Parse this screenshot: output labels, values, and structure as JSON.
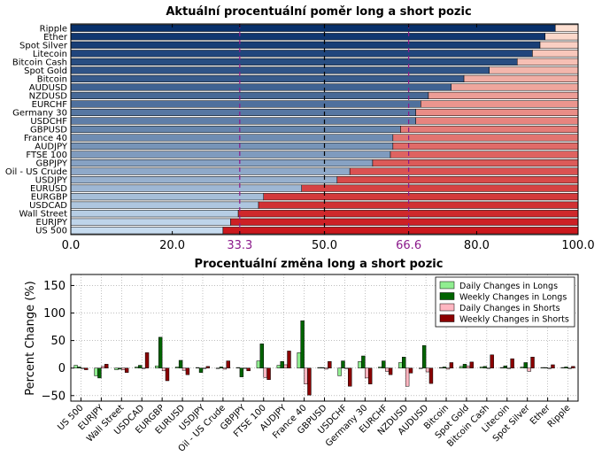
{
  "chart_data": [
    {
      "type": "bar",
      "orientation": "horizontal",
      "stacked": true,
      "title": "Aktuální procentuální poměr long a short pozic",
      "categories": [
        "Ripple",
        "Ether",
        "Spot Silver",
        "Litecoin",
        "Bitcoin Cash",
        "Spot Gold",
        "Bitcoin",
        "AUDUSD",
        "NZDUSD",
        "EURCHF",
        "Germany 30",
        "USDCHF",
        "GBPUSD",
        "France 40",
        "AUDJPY",
        "FTSE 100",
        "GBPJPY",
        "Oil - US Crude",
        "USDJPY",
        "EURUSD",
        "EURGBP",
        "USDCAD",
        "Wall Street",
        "EURJPY",
        "US 500"
      ],
      "series": [
        {
          "values": [
            95.5,
            93.5,
            92.5,
            91.0,
            88.0,
            82.5,
            77.5,
            75.0,
            70.5,
            69.0,
            68.0,
            68.0,
            65.0,
            63.5,
            63.5,
            63.0,
            59.5,
            55.0,
            52.5,
            45.5,
            38.0,
            37.0,
            33.0,
            31.5,
            30.0
          ]
        }
      ],
      "xlim": [
        0,
        100
      ],
      "xticks": [
        "0.0",
        "20.0",
        "33.3",
        "50.0",
        "66.6",
        "80.0",
        "100.0"
      ],
      "reference_lines": [
        {
          "value": 33.3,
          "label": "33.3",
          "color": "#8b1a8b"
        },
        {
          "value": 50.0,
          "label": "50.0",
          "color": "#000000"
        },
        {
          "value": 66.6,
          "label": "66.6",
          "color": "#8b1a8b"
        }
      ],
      "colors": {
        "long_dark": "#08306b",
        "long_light": "#c6dbef",
        "short_light": "#fee0d2",
        "short_dark": "#cb181d"
      }
    },
    {
      "type": "bar",
      "title": "Procentuální změna long a short pozic",
      "ylabel": "Percent Change (%)",
      "ylim": [
        -60,
        170
      ],
      "yticks": [
        "−50",
        "0",
        "50",
        "100",
        "150"
      ],
      "categories": [
        "US 500",
        "EURJPY",
        "Wall Street",
        "USDCAD",
        "EURGBP",
        "EURUSD",
        "USDJPY",
        "Oil - US Crude",
        "GBPJPY",
        "FTSE 100",
        "AUDJPY",
        "France 40",
        "GBPUSD",
        "USDCHF",
        "Germany 30",
        "EURCHF",
        "NZDUSD",
        "AUDUSD",
        "Bitcoin",
        "Spot Gold",
        "Bitcoin Cash",
        "Litecoin",
        "Spot Silver",
        "Ether",
        "Ripple"
      ],
      "series": [
        {
          "name": "Daily Changes in Longs",
          "color": "#90ee90",
          "values": [
            5,
            -14,
            -3,
            2,
            4,
            2,
            1,
            -1,
            1,
            13,
            5,
            28,
            1,
            -14,
            12,
            2,
            10,
            -1,
            1,
            3,
            2,
            1,
            2,
            1,
            1
          ]
        },
        {
          "name": "Weekly Changes in Longs",
          "color": "#006400",
          "values": [
            2,
            -18,
            -2,
            5,
            56,
            14,
            -8,
            2,
            -16,
            44,
            12,
            86,
            1,
            13,
            22,
            13,
            20,
            41,
            2,
            7,
            3,
            4,
            10,
            1,
            2
          ]
        },
        {
          "name": "Daily Changes in Shorts",
          "color": "#ffb6c1",
          "values": [
            -1,
            3,
            -3,
            -1,
            -5,
            -4,
            -1,
            -2,
            0,
            -17,
            6,
            -29,
            -2,
            -1,
            -18,
            -6,
            -33,
            -7,
            -2,
            4,
            0,
            -1,
            -6,
            -1,
            -1
          ]
        },
        {
          "name": "Weekly Changes in Shorts",
          "color": "#8b0000",
          "values": [
            -3,
            7,
            -8,
            28,
            -23,
            -12,
            3,
            13,
            -5,
            -21,
            31,
            -49,
            12,
            -33,
            -29,
            -12,
            -9,
            -28,
            10,
            11,
            24,
            17,
            20,
            6,
            3
          ]
        }
      ],
      "legend_placement": "top-right",
      "grid": true
    }
  ]
}
